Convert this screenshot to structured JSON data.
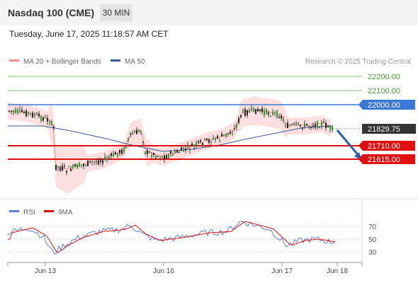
{
  "header": {
    "title": "Nasdaq 100 (CME)",
    "timeframe": "30 MIN"
  },
  "date_line": "Tuesday, June 17, 2025 11:18:57 AM CET",
  "legend": {
    "ma20_label": "MA 20 + Bollinger Bands",
    "ma50_label": "MA 50",
    "ma20_color": "#f28b8b",
    "ma50_color": "#3b5998"
  },
  "credit": "Research © 2025 Trading Central",
  "rsi_legend": {
    "rsi_label": "RSI",
    "ma_label": "9MA",
    "rsi_color": "#5b7fd6",
    "ma_color": "#e01010"
  },
  "chart_data": [
    {
      "type": "candlestick",
      "series": [
        {
          "name": "MA 20 + Bollinger Bands",
          "color": "#f28b8b"
        },
        {
          "name": "MA 50",
          "color": "#3b5998"
        }
      ],
      "price_levels": [
        {
          "label": "22200.00",
          "kind": "resistance",
          "color": "#7fc060"
        },
        {
          "label": "22100.00",
          "kind": "resistance",
          "color": "#7fc060"
        },
        {
          "label": "22000.00",
          "kind": "pivot",
          "color": "#3c78d8"
        },
        {
          "label": "21829.75",
          "kind": "last",
          "color": "#333333"
        },
        {
          "label": "21710.00",
          "kind": "support",
          "color": "#e01010"
        },
        {
          "label": "21615.00",
          "kind": "support",
          "color": "#e01010"
        }
      ],
      "x_ticks": [
        "Jun 13",
        "Jun 16",
        "Jun 17",
        "Jun 18"
      ]
    },
    {
      "type": "line",
      "series": [
        {
          "name": "RSI",
          "color": "#5b7fd6"
        },
        {
          "name": "9MA",
          "color": "#e01010"
        }
      ],
      "y_ticks": [
        "70",
        "50",
        "30"
      ]
    }
  ]
}
